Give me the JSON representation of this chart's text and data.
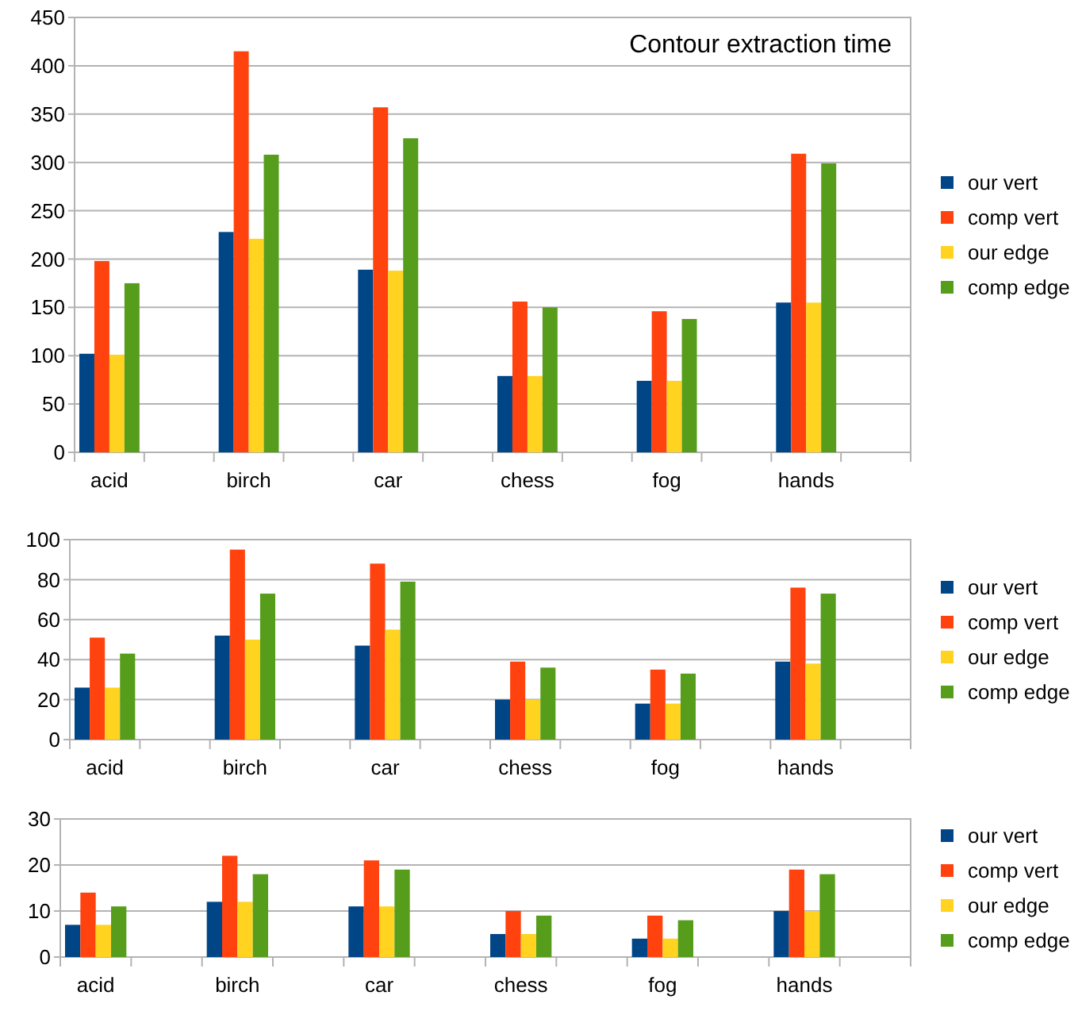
{
  "chart_data": [
    {
      "type": "bar",
      "title": "Contour extraction time",
      "categories": [
        "acid",
        null,
        "birch",
        null,
        "car",
        null,
        "chess",
        null,
        "fog",
        null,
        "hands",
        null
      ],
      "ylim": [
        0,
        450
      ],
      "yticks": [
        0,
        50,
        100,
        150,
        200,
        250,
        300,
        350,
        400,
        450
      ],
      "grid": "y",
      "legend": "right",
      "series": [
        {
          "name": "our vert",
          "color": "#004586",
          "values": [
            102,
            null,
            228,
            null,
            189,
            null,
            79,
            null,
            74,
            null,
            155,
            null
          ]
        },
        {
          "name": "comp vert",
          "color": "#ff420e",
          "values": [
            198,
            null,
            415,
            null,
            357,
            null,
            156,
            null,
            146,
            null,
            309,
            null
          ]
        },
        {
          "name": "our edge",
          "color": "#ffd320",
          "values": [
            101,
            null,
            221,
            null,
            188,
            null,
            79,
            null,
            74,
            null,
            155,
            null
          ]
        },
        {
          "name": "comp edge",
          "color": "#579d1c",
          "values": [
            175,
            null,
            308,
            null,
            325,
            null,
            150,
            null,
            138,
            null,
            299,
            null
          ]
        }
      ]
    },
    {
      "type": "bar",
      "categories": [
        "acid",
        null,
        "birch",
        null,
        "car",
        null,
        "chess",
        null,
        "fog",
        null,
        "hands",
        null
      ],
      "ylim": [
        0,
        100
      ],
      "yticks": [
        0,
        20,
        40,
        60,
        80,
        100
      ],
      "grid": "y",
      "legend": "right",
      "series": [
        {
          "name": "our vert",
          "color": "#004586",
          "values": [
            26,
            null,
            52,
            null,
            47,
            null,
            20,
            null,
            18,
            null,
            39,
            null
          ]
        },
        {
          "name": "comp vert",
          "color": "#ff420e",
          "values": [
            51,
            null,
            95,
            null,
            88,
            null,
            39,
            null,
            35,
            null,
            76,
            null
          ]
        },
        {
          "name": "our edge",
          "color": "#ffd320",
          "values": [
            26,
            null,
            50,
            null,
            55,
            null,
            20,
            null,
            18,
            null,
            38,
            null
          ]
        },
        {
          "name": "comp edge",
          "color": "#579d1c",
          "values": [
            43,
            null,
            73,
            null,
            79,
            null,
            36,
            null,
            33,
            null,
            73,
            null
          ]
        }
      ]
    },
    {
      "type": "bar",
      "categories": [
        "acid",
        null,
        "birch",
        null,
        "car",
        null,
        "chess",
        null,
        "fog",
        null,
        "hands",
        null
      ],
      "ylim": [
        0,
        30
      ],
      "yticks": [
        0,
        10,
        20,
        30
      ],
      "grid": "y",
      "legend": "right",
      "series": [
        {
          "name": "our vert",
          "color": "#004586",
          "values": [
            7,
            null,
            12,
            null,
            11,
            null,
            5,
            null,
            4,
            null,
            10,
            null
          ]
        },
        {
          "name": "comp vert",
          "color": "#ff420e",
          "values": [
            14,
            null,
            22,
            null,
            21,
            null,
            10,
            null,
            9,
            null,
            19,
            null
          ]
        },
        {
          "name": "our edge",
          "color": "#ffd320",
          "values": [
            7,
            null,
            12,
            null,
            11,
            null,
            5,
            null,
            4,
            null,
            10,
            null
          ]
        },
        {
          "name": "comp edge",
          "color": "#579d1c",
          "values": [
            11,
            null,
            18,
            null,
            19,
            null,
            9,
            null,
            8,
            null,
            18,
            null
          ]
        }
      ]
    }
  ]
}
